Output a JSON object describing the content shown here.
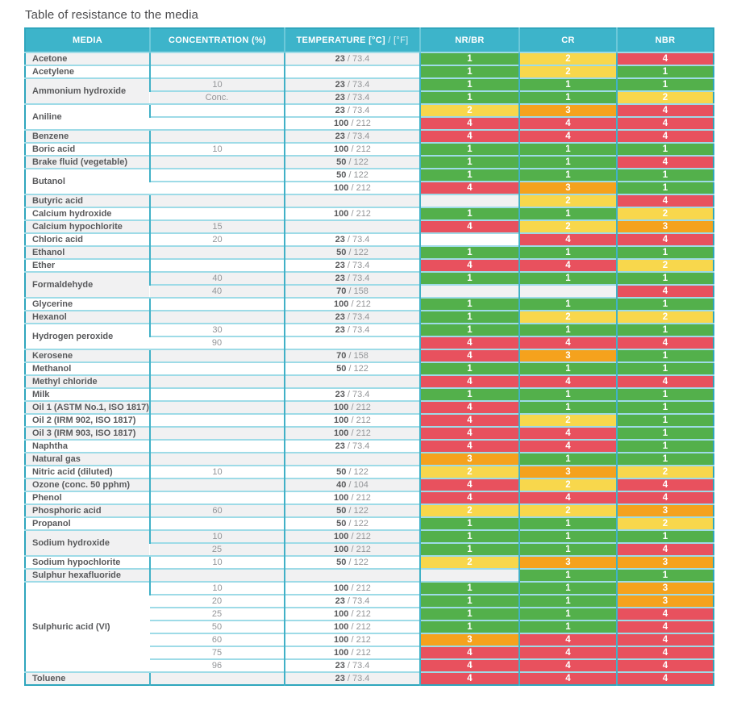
{
  "page_title": "Table of resistance to the media",
  "table": {
    "header": {
      "media": "MEDIA",
      "concentration": "CONCENTRATION (%)",
      "temperature_c": "TEMPERATURE [°C]",
      "temperature_f": "/ [°F]",
      "nr_br": "NR/BR",
      "cr": "CR",
      "nbr": "NBR"
    },
    "rating_colors": {
      "1": "#53b04b",
      "2": "#f8d74c",
      "3": "#f5a21d",
      "4": "#e8515e"
    },
    "theme": {
      "header_bg": "#3db4ca",
      "outer_border": "#2fa6bd",
      "row_border": "#9edbe7",
      "column_border": "#41b1c7",
      "shaded_row_bg": "#f1f1f2",
      "media_text": "#58595b",
      "secondary_text": "#939598"
    },
    "groups": [
      {
        "media": "Acetone",
        "rows": [
          {
            "concentration": "",
            "temp_c": "23",
            "temp_f": "73.4",
            "ratings": {
              "nr_br": "1",
              "cr": "2",
              "nbr": "4"
            }
          }
        ]
      },
      {
        "media": "Acetylene",
        "rows": [
          {
            "concentration": "",
            "temp_c": "",
            "temp_f": "",
            "ratings": {
              "nr_br": "1",
              "cr": "2",
              "nbr": "1"
            }
          }
        ]
      },
      {
        "media": "Ammonium hydroxide",
        "rows": [
          {
            "concentration": "10",
            "temp_c": "23",
            "temp_f": "73.4",
            "ratings": {
              "nr_br": "1",
              "cr": "1",
              "nbr": "1"
            }
          },
          {
            "concentration": "Conc.",
            "temp_c": "23",
            "temp_f": "73.4",
            "ratings": {
              "nr_br": "1",
              "cr": "1",
              "nbr": "2"
            }
          }
        ]
      },
      {
        "media": "Aniline",
        "rows": [
          {
            "concentration": "",
            "temp_c": "23",
            "temp_f": "73.4",
            "ratings": {
              "nr_br": "2",
              "cr": "3",
              "nbr": "4"
            }
          },
          {
            "concentration": "",
            "temp_c": "100",
            "temp_f": "212",
            "ratings": {
              "nr_br": "4",
              "cr": "4",
              "nbr": "4"
            }
          }
        ]
      },
      {
        "media": "Benzene",
        "rows": [
          {
            "concentration": "",
            "temp_c": "23",
            "temp_f": "73.4",
            "ratings": {
              "nr_br": "4",
              "cr": "4",
              "nbr": "4"
            }
          }
        ]
      },
      {
        "media": "Boric acid",
        "rows": [
          {
            "concentration": "10",
            "temp_c": "100",
            "temp_f": "212",
            "ratings": {
              "nr_br": "1",
              "cr": "1",
              "nbr": "1"
            }
          }
        ]
      },
      {
        "media": "Brake fluid (vegetable)",
        "rows": [
          {
            "concentration": "",
            "temp_c": "50",
            "temp_f": "122",
            "ratings": {
              "nr_br": "1",
              "cr": "1",
              "nbr": "4"
            }
          }
        ]
      },
      {
        "media": "Butanol",
        "rows": [
          {
            "concentration": "",
            "temp_c": "50",
            "temp_f": "122",
            "ratings": {
              "nr_br": "1",
              "cr": "1",
              "nbr": "1"
            }
          },
          {
            "concentration": "",
            "temp_c": "100",
            "temp_f": "212",
            "ratings": {
              "nr_br": "4",
              "cr": "3",
              "nbr": "1"
            }
          }
        ]
      },
      {
        "media": "Butyric acid",
        "rows": [
          {
            "concentration": "",
            "temp_c": "",
            "temp_f": "",
            "ratings": {
              "nr_br": "",
              "cr": "2",
              "nbr": "4"
            }
          }
        ]
      },
      {
        "media": "Calcium hydroxide",
        "rows": [
          {
            "concentration": "",
            "temp_c": "100",
            "temp_f": "212",
            "ratings": {
              "nr_br": "1",
              "cr": "1",
              "nbr": "2"
            }
          }
        ]
      },
      {
        "media": "Calcium hypochlorite",
        "rows": [
          {
            "concentration": "15",
            "temp_c": "",
            "temp_f": "",
            "ratings": {
              "nr_br": "4",
              "cr": "2",
              "nbr": "3"
            }
          }
        ]
      },
      {
        "media": "Chloric acid",
        "rows": [
          {
            "concentration": "20",
            "temp_c": "23",
            "temp_f": "73.4",
            "ratings": {
              "nr_br": "",
              "cr": "4",
              "nbr": "4"
            }
          }
        ]
      },
      {
        "media": "Ethanol",
        "rows": [
          {
            "concentration": "",
            "temp_c": "50",
            "temp_f": "122",
            "ratings": {
              "nr_br": "1",
              "cr": "1",
              "nbr": "1"
            }
          }
        ]
      },
      {
        "media": "Ether",
        "rows": [
          {
            "concentration": "",
            "temp_c": "23",
            "temp_f": "73.4",
            "ratings": {
              "nr_br": "4",
              "cr": "4",
              "nbr": "2"
            }
          }
        ]
      },
      {
        "media": "Formaldehyde",
        "rows": [
          {
            "concentration": "40",
            "temp_c": "23",
            "temp_f": "73.4",
            "ratings": {
              "nr_br": "1",
              "cr": "1",
              "nbr": "1"
            }
          },
          {
            "concentration": "40",
            "temp_c": "70",
            "temp_f": "158",
            "ratings": {
              "nr_br": "",
              "cr": "",
              "nbr": "4"
            }
          }
        ]
      },
      {
        "media": "Glycerine",
        "rows": [
          {
            "concentration": "",
            "temp_c": "100",
            "temp_f": "212",
            "ratings": {
              "nr_br": "1",
              "cr": "1",
              "nbr": "1"
            }
          }
        ]
      },
      {
        "media": "Hexanol",
        "rows": [
          {
            "concentration": "",
            "temp_c": "23",
            "temp_f": "73.4",
            "ratings": {
              "nr_br": "1",
              "cr": "2",
              "nbr": "2"
            }
          }
        ]
      },
      {
        "media": "Hydrogen peroxide",
        "rows": [
          {
            "concentration": "30",
            "temp_c": "23",
            "temp_f": "73.4",
            "ratings": {
              "nr_br": "1",
              "cr": "1",
              "nbr": "1"
            }
          },
          {
            "concentration": "90",
            "temp_c": "",
            "temp_f": "",
            "ratings": {
              "nr_br": "4",
              "cr": "4",
              "nbr": "4"
            }
          }
        ]
      },
      {
        "media": "Kerosene",
        "rows": [
          {
            "concentration": "",
            "temp_c": "70",
            "temp_f": "158",
            "ratings": {
              "nr_br": "4",
              "cr": "3",
              "nbr": "1"
            }
          }
        ]
      },
      {
        "media": "Methanol",
        "rows": [
          {
            "concentration": "",
            "temp_c": "50",
            "temp_f": "122",
            "ratings": {
              "nr_br": "1",
              "cr": "1",
              "nbr": "1"
            }
          }
        ]
      },
      {
        "media": "Methyl chloride",
        "rows": [
          {
            "concentration": "",
            "temp_c": "",
            "temp_f": "",
            "ratings": {
              "nr_br": "4",
              "cr": "4",
              "nbr": "4"
            }
          }
        ]
      },
      {
        "media": "Milk",
        "rows": [
          {
            "concentration": "",
            "temp_c": "23",
            "temp_f": "73.4",
            "ratings": {
              "nr_br": "1",
              "cr": "1",
              "nbr": "1"
            }
          }
        ]
      },
      {
        "media": "Oil 1 (ASTM No.1, ISO 1817)",
        "rows": [
          {
            "concentration": "",
            "temp_c": "100",
            "temp_f": "212",
            "ratings": {
              "nr_br": "4",
              "cr": "1",
              "nbr": "1"
            }
          }
        ]
      },
      {
        "media": "Oil 2 (IRM 902, ISO 1817)",
        "rows": [
          {
            "concentration": "",
            "temp_c": "100",
            "temp_f": "212",
            "ratings": {
              "nr_br": "4",
              "cr": "2",
              "nbr": "1"
            }
          }
        ]
      },
      {
        "media": "Oil 3 (IRM 903, ISO 1817)",
        "rows": [
          {
            "concentration": "",
            "temp_c": "100",
            "temp_f": "212",
            "ratings": {
              "nr_br": "4",
              "cr": "4",
              "nbr": "1"
            }
          }
        ]
      },
      {
        "media": "Naphtha",
        "rows": [
          {
            "concentration": "",
            "temp_c": "23",
            "temp_f": "73.4",
            "ratings": {
              "nr_br": "4",
              "cr": "4",
              "nbr": "1"
            }
          }
        ]
      },
      {
        "media": "Natural gas",
        "rows": [
          {
            "concentration": "",
            "temp_c": "",
            "temp_f": "",
            "ratings": {
              "nr_br": "3",
              "cr": "1",
              "nbr": "1"
            }
          }
        ]
      },
      {
        "media": "Nitric acid (diluted)",
        "rows": [
          {
            "concentration": "10",
            "temp_c": "50",
            "temp_f": "122",
            "ratings": {
              "nr_br": "2",
              "cr": "3",
              "nbr": "2"
            }
          }
        ]
      },
      {
        "media": "Ozone (conc. 50 pphm)",
        "rows": [
          {
            "concentration": "",
            "temp_c": "40",
            "temp_f": "104",
            "ratings": {
              "nr_br": "4",
              "cr": "2",
              "nbr": "4"
            }
          }
        ]
      },
      {
        "media": "Phenol",
        "rows": [
          {
            "concentration": "",
            "temp_c": "100",
            "temp_f": "212",
            "ratings": {
              "nr_br": "4",
              "cr": "4",
              "nbr": "4"
            }
          }
        ]
      },
      {
        "media": "Phosphoric acid",
        "rows": [
          {
            "concentration": "60",
            "temp_c": "50",
            "temp_f": "122",
            "ratings": {
              "nr_br": "2",
              "cr": "2",
              "nbr": "3"
            }
          }
        ]
      },
      {
        "media": "Propanol",
        "rows": [
          {
            "concentration": "",
            "temp_c": "50",
            "temp_f": "122",
            "ratings": {
              "nr_br": "1",
              "cr": "1",
              "nbr": "2"
            }
          }
        ]
      },
      {
        "media": "Sodium hydroxide",
        "rows": [
          {
            "concentration": "10",
            "temp_c": "100",
            "temp_f": "212",
            "ratings": {
              "nr_br": "1",
              "cr": "1",
              "nbr": "1"
            }
          },
          {
            "concentration": "25",
            "temp_c": "100",
            "temp_f": "212",
            "ratings": {
              "nr_br": "1",
              "cr": "1",
              "nbr": "4"
            }
          }
        ]
      },
      {
        "media": "Sodium hypochlorite",
        "rows": [
          {
            "concentration": "10",
            "temp_c": "50",
            "temp_f": "122",
            "ratings": {
              "nr_br": "2",
              "cr": "3",
              "nbr": "3"
            }
          }
        ]
      },
      {
        "media": "Sulphur hexafluoride",
        "rows": [
          {
            "concentration": "",
            "temp_c": "",
            "temp_f": "",
            "ratings": {
              "nr_br": "",
              "cr": "1",
              "nbr": "1"
            }
          }
        ]
      },
      {
        "media": "Sulphuric acid (VI)",
        "rows": [
          {
            "concentration": "10",
            "temp_c": "100",
            "temp_f": "212",
            "ratings": {
              "nr_br": "1",
              "cr": "1",
              "nbr": "3"
            }
          },
          {
            "concentration": "20",
            "temp_c": "23",
            "temp_f": "73.4",
            "ratings": {
              "nr_br": "1",
              "cr": "1",
              "nbr": "3"
            }
          },
          {
            "concentration": "25",
            "temp_c": "100",
            "temp_f": "212",
            "ratings": {
              "nr_br": "1",
              "cr": "1",
              "nbr": "4"
            }
          },
          {
            "concentration": "50",
            "temp_c": "100",
            "temp_f": "212",
            "ratings": {
              "nr_br": "1",
              "cr": "1",
              "nbr": "4"
            }
          },
          {
            "concentration": "60",
            "temp_c": "100",
            "temp_f": "212",
            "ratings": {
              "nr_br": "3",
              "cr": "4",
              "nbr": "4"
            }
          },
          {
            "concentration": "75",
            "temp_c": "100",
            "temp_f": "212",
            "ratings": {
              "nr_br": "4",
              "cr": "4",
              "nbr": "4"
            }
          },
          {
            "concentration": "96",
            "temp_c": "23",
            "temp_f": "73.4",
            "ratings": {
              "nr_br": "4",
              "cr": "4",
              "nbr": "4"
            }
          }
        ]
      },
      {
        "media": "Toluene",
        "rows": [
          {
            "concentration": "",
            "temp_c": "23",
            "temp_f": "73.4",
            "ratings": {
              "nr_br": "4",
              "cr": "4",
              "nbr": "4"
            }
          }
        ]
      }
    ]
  }
}
